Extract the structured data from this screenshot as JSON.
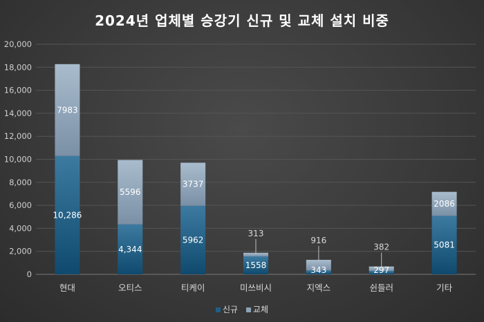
{
  "chart_data": {
    "type": "bar",
    "stacked": true,
    "title": "2024년 업체별 승강기 신규 및 교체 설치 비중",
    "categories": [
      "현대",
      "오티스",
      "티케이",
      "미쓰비시",
      "지엑스",
      "쉰들러",
      "기타"
    ],
    "series": [
      {
        "name": "신규",
        "values": [
          10286,
          4344,
          5962,
          1558,
          343,
          297,
          5081
        ],
        "labels": [
          "10,286",
          "4,344",
          "5962",
          "1558",
          "343",
          "297",
          "5081"
        ],
        "color": "#1f5f86"
      },
      {
        "name": "교체",
        "values": [
          7983,
          5596,
          3737,
          313,
          916,
          382,
          2086
        ],
        "labels": [
          "7983",
          "5596",
          "3737",
          "313",
          "916",
          "382",
          "2086"
        ],
        "color": "#8da2b6"
      }
    ],
    "y_ticks": [
      "0",
      "2,000",
      "4,000",
      "6,000",
      "8,000",
      "10,000",
      "12,000",
      "14,000",
      "16,000",
      "18,000",
      "20,000"
    ],
    "ylim": [
      0,
      20000
    ],
    "grid": true,
    "legend_position": "bottom"
  }
}
